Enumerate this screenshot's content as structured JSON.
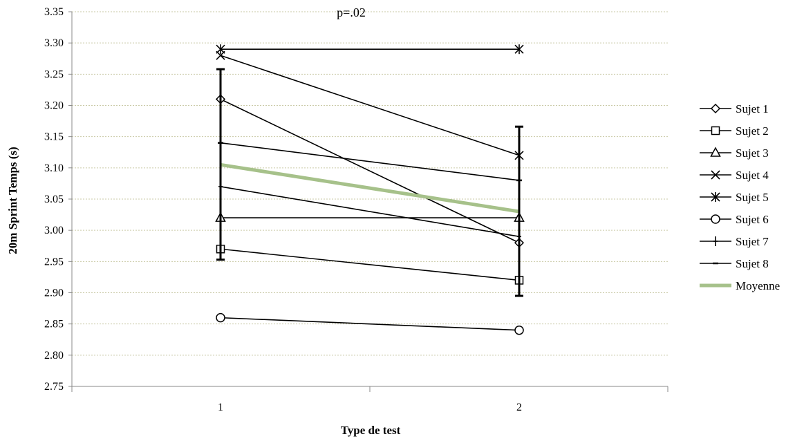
{
  "chart_data": {
    "type": "line",
    "title": "",
    "annotation": "p=.02",
    "xlabel": "Type de test",
    "ylabel": "20m Sprint Temps (s)",
    "categories": [
      "1",
      "2"
    ],
    "ylim": [
      2.75,
      3.35
    ],
    "ytick_step": 0.05,
    "ytick_labels": [
      "2.75",
      "2.80",
      "2.85",
      "2.90",
      "2.95",
      "3.00",
      "3.05",
      "3.10",
      "3.15",
      "3.20",
      "3.25",
      "3.30",
      "3.35"
    ],
    "grid": true,
    "legend_position": "right",
    "series": [
      {
        "name": "Sujet 1",
        "marker": "diamond",
        "color": "#000000",
        "values": [
          3.21,
          2.98
        ]
      },
      {
        "name": "Sujet 2",
        "marker": "square",
        "color": "#000000",
        "values": [
          2.97,
          2.92
        ]
      },
      {
        "name": "Sujet 3",
        "marker": "triangle",
        "color": "#000000",
        "values": [
          3.02,
          3.02
        ]
      },
      {
        "name": "Sujet 4",
        "marker": "x",
        "color": "#000000",
        "values": [
          3.28,
          3.12
        ]
      },
      {
        "name": "Sujet 5",
        "marker": "star",
        "color": "#000000",
        "values": [
          3.29,
          3.29
        ]
      },
      {
        "name": "Sujet 6",
        "marker": "circle",
        "color": "#000000",
        "values": [
          2.86,
          2.84
        ]
      },
      {
        "name": "Sujet 7",
        "marker": "plus",
        "color": "#000000",
        "values": [
          3.07,
          2.99
        ]
      },
      {
        "name": "Sujet 8",
        "marker": "dash",
        "color": "#000000",
        "values": [
          3.14,
          3.08
        ]
      },
      {
        "name": "Moyenne",
        "marker": "none",
        "color": "#a6c18a",
        "values": [
          3.105,
          3.03
        ],
        "error_low": [
          2.953,
          2.895
        ],
        "error_high": [
          3.258,
          3.166
        ]
      }
    ]
  }
}
